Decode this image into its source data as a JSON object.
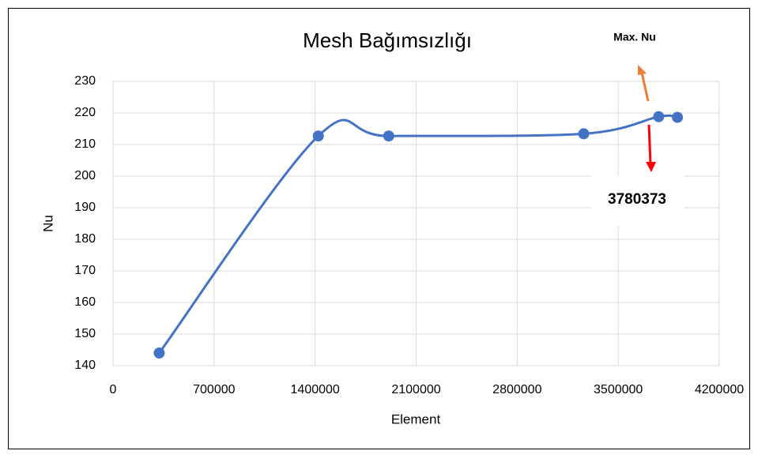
{
  "chart_data": {
    "type": "line",
    "title": "Mesh Bağımsızlığı",
    "x_label": "Element",
    "y_label": "Nu",
    "series": [
      {
        "name": "Nu",
        "color": "#4472c4",
        "x": [
          320000,
          1422000,
          1910000,
          3261000,
          3780373,
          3910000
        ],
        "values": [
          144,
          212.7,
          212.7,
          213.4,
          218.8,
          218.6
        ]
      }
    ],
    "xlim": [
      0,
      4200000
    ],
    "xticks": [
      0,
      700000,
      1400000,
      2100000,
      2800000,
      3500000,
      4200000
    ],
    "ylim": [
      140,
      230
    ],
    "yticks": [
      140,
      150,
      160,
      170,
      180,
      190,
      200,
      210,
      220,
      230
    ],
    "grid": true,
    "smooth": true,
    "annotations": [
      {
        "text": "Max. Nu",
        "color": "#ff0000"
      },
      {
        "text": "3780373",
        "color": "#ff0000"
      }
    ]
  }
}
